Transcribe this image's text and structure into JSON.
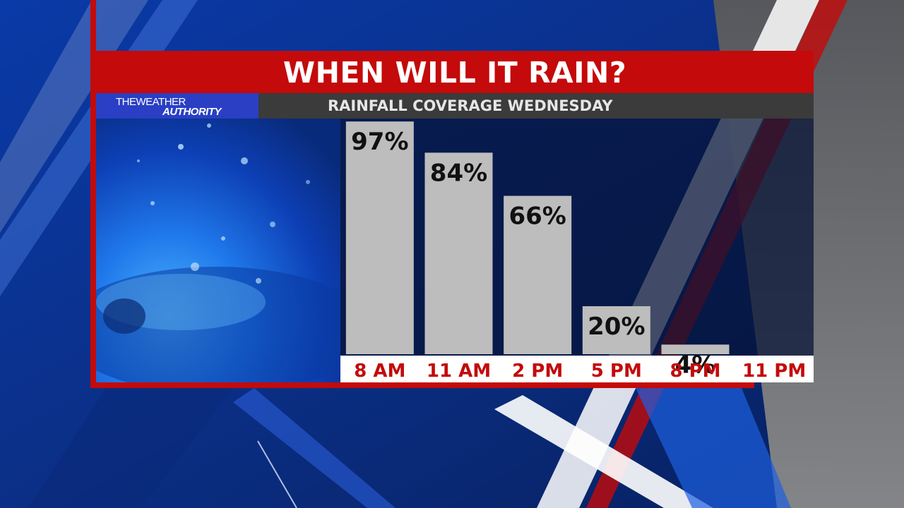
{
  "title": "WHEN WILL IT RAIN?",
  "subtitle": "RAINFALL COVERAGE WEDNESDAY",
  "logo": {
    "line1": "THEWEATHER",
    "line2": "AUTHORITY"
  },
  "colors": {
    "accent_red": "#c40a0a",
    "bar": "#bdbdbd",
    "bar_label": "#111111",
    "tick_label": "#c40a0a",
    "brand_blue": "#2a3fc4"
  },
  "chart_data": {
    "type": "bar",
    "title": "WHEN WILL IT RAIN?",
    "subtitle": "RAINFALL COVERAGE WEDNESDAY",
    "categories": [
      "8 AM",
      "11 AM",
      "2 PM",
      "5 PM",
      "8 PM",
      "11 PM"
    ],
    "values": [
      97,
      84,
      66,
      20,
      4,
      null
    ],
    "labels": [
      "97%",
      "84%",
      "66%",
      "20%",
      "4%",
      ""
    ],
    "ylim": [
      0,
      100
    ],
    "grid": false,
    "legend": "none"
  }
}
